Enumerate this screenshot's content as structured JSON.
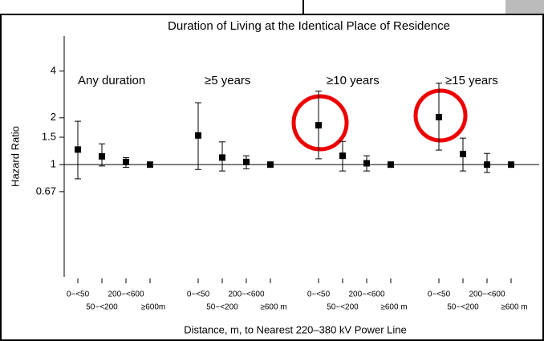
{
  "chart_data": {
    "type": "errorbar",
    "title": "Duration of Living at the Identical Place of Residence",
    "y_label": "Hazard Ratio",
    "x_label": "Distance, m, to Nearest 220–380 kV Power Line",
    "log_y": true,
    "ylim": [
      0.19,
      6.7
    ],
    "yticks": [
      4,
      2,
      1.5,
      1,
      0.67
    ],
    "series": [
      {
        "name": "Any duration",
        "categories": [
          "0−<50",
          "50−<200",
          "200−<600",
          "≥600m"
        ],
        "values": [
          1.25,
          1.13,
          1.04,
          1
        ],
        "lower": [
          0.81,
          0.98,
          0.96,
          null
        ],
        "upper": [
          1.9,
          1.36,
          1.11,
          null
        ]
      },
      {
        "name": "≥5 years",
        "categories": [
          "0−<50",
          "50−<200",
          "200−<600",
          "≥600 m"
        ],
        "values": [
          1.54,
          1.11,
          1.04,
          1
        ],
        "lower": [
          0.93,
          0.91,
          0.94,
          null
        ],
        "upper": [
          2.5,
          1.4,
          1.14,
          null
        ]
      },
      {
        "name": "≥10 years",
        "categories": [
          "0−<50",
          "50−<200",
          "200−<600",
          "≥600 m"
        ],
        "values": [
          1.79,
          1.14,
          1.02,
          1
        ],
        "lower": [
          1.09,
          0.91,
          0.91,
          null
        ],
        "upper": [
          2.97,
          1.41,
          1.14,
          null
        ]
      },
      {
        "name": "≥15 years",
        "categories": [
          "0−<50",
          "50−<200",
          "200−<600",
          "≥600 m"
        ],
        "values": [
          2.02,
          1.17,
          1,
          1
        ],
        "lower": [
          1.24,
          0.91,
          0.89,
          null
        ],
        "upper": [
          3.34,
          1.48,
          1.18,
          null
        ]
      }
    ]
  }
}
